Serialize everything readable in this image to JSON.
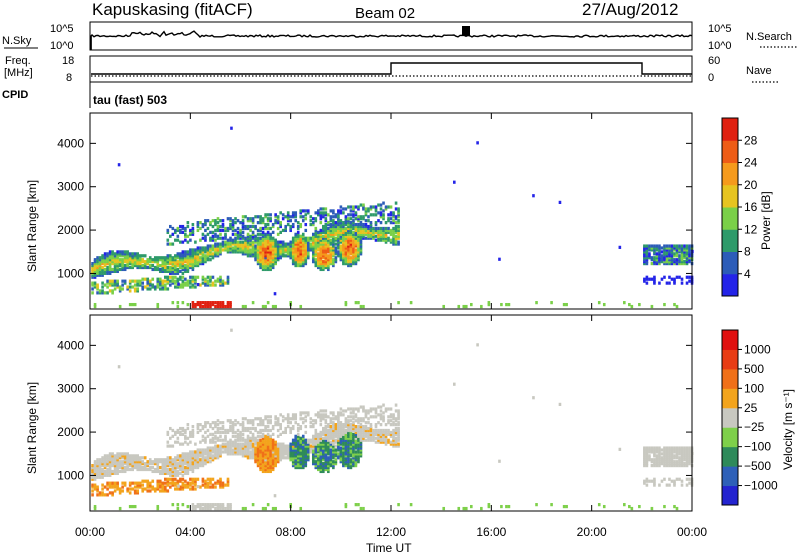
{
  "header": {
    "site": "Kapuskasing (fitACF)",
    "beam": "Beam 02",
    "date": "27/Aug/2012"
  },
  "summary_panels": {
    "noise": {
      "left_label": "N.Sky",
      "left_ticks": [
        "10^5",
        "10^0"
      ],
      "right_ticks": [
        "10^5",
        "10^0"
      ],
      "right_label": "N.Search"
    },
    "freq": {
      "left_label_line1": "Freq.",
      "left_label_line2": "[MHz]",
      "left_ticks": [
        "18",
        "8"
      ],
      "right_ticks": [
        "60",
        "0"
      ],
      "right_label": "Nave",
      "cpid_label": "CPID",
      "cpid_text": "tau (fast) 503"
    }
  },
  "chart_data": [
    {
      "type": "heatmap",
      "parameter": "Power",
      "ylabel": "Slant Range [km]",
      "ylim": [
        180,
        4700
      ],
      "yticks": [
        "1000",
        "2000",
        "3000",
        "4000"
      ],
      "xlim_hours": [
        0,
        24
      ],
      "colorbar": {
        "label": "Power [dB]",
        "ticks": [
          "4",
          "8",
          "12",
          "16",
          "20",
          "24",
          "28"
        ],
        "colors": [
          "#2424e8",
          "#2c5cb8",
          "#2e9a6a",
          "#7ad048",
          "#e6c420",
          "#f59a1c",
          "#ee5c16",
          "#e02010"
        ]
      },
      "echo_regions": [
        {
          "t_start": 0.2,
          "t_end": 12.0,
          "range_center": 1150,
          "thickness": 450,
          "note": "main band rising"
        },
        {
          "t_start": 6.5,
          "t_end": 10.8,
          "range_center": 1500,
          "thickness": 700,
          "note": "strong cells"
        },
        {
          "t_start": 22.0,
          "t_end": 24.0,
          "range_center": 1400,
          "thickness": 450,
          "note": "late band"
        }
      ]
    },
    {
      "type": "heatmap",
      "parameter": "Velocity",
      "ylabel": "Slant Range [km]",
      "ylim": [
        180,
        4700
      ],
      "yticks": [
        "1000",
        "2000",
        "3000",
        "4000"
      ],
      "xlim_hours": [
        0,
        24
      ],
      "xticks": [
        "00:00",
        "04:00",
        "08:00",
        "12:00",
        "16:00",
        "20:00",
        "00:00"
      ],
      "xlabel": "Time UT",
      "colorbar": {
        "label": "Velocity [m s⁻¹]",
        "ticks": [
          "1000",
          "500",
          "100",
          "25",
          "−25",
          "−100",
          "−500",
          "−1000"
        ],
        "colors": [
          "#2424d0",
          "#2e60b8",
          "#2e8a5a",
          "#7ed04a",
          "#c8c8c0",
          "#f3a41c",
          "#f07018",
          "#e83c14",
          "#e01010"
        ]
      }
    }
  ]
}
